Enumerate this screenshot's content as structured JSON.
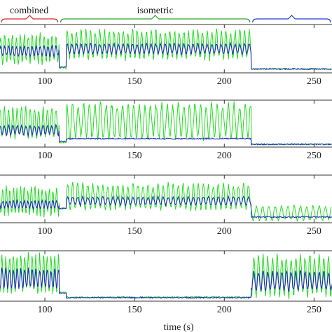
{
  "chart_data": [
    {
      "type": "line",
      "panel": 1,
      "xlabel": "",
      "ylabel": "",
      "xlim": [
        75,
        260
      ],
      "xticks": [
        100,
        150,
        200,
        250
      ],
      "xtick_labels": [
        "100",
        "150",
        "200",
        "250"
      ],
      "phases": [
        {
          "label": "combined",
          "start": 75,
          "end": 108,
          "color": "#d62728"
        },
        {
          "label": "isometric",
          "start": 108,
          "end": 215,
          "color": "#2ca02c"
        },
        {
          "label": "",
          "start": 215,
          "end": 260,
          "color": "#1f3bd6"
        }
      ],
      "series": [
        {
          "color": "#22dd22",
          "segments": [
            {
              "start": 75,
              "end": 108,
              "kind": "osc",
              "base": 0.5,
              "amp": 0.28,
              "period": 2.2
            },
            {
              "start": 108,
              "end": 112,
              "kind": "flat",
              "base": 0.1
            },
            {
              "start": 112,
              "end": 215,
              "kind": "osc",
              "base": 0.58,
              "amp": 0.28,
              "period": 2.6
            },
            {
              "start": 215,
              "end": 260,
              "kind": "flat",
              "base": 0.08
            }
          ]
        },
        {
          "color": "#1f2fb8",
          "segments": [
            {
              "start": 75,
              "end": 108,
              "kind": "osc",
              "base": 0.45,
              "amp": 0.1,
              "period": 2.2
            },
            {
              "start": 108,
              "end": 112,
              "kind": "flat",
              "base": 0.12
            },
            {
              "start": 112,
              "end": 215,
              "kind": "osc",
              "base": 0.5,
              "amp": 0.1,
              "period": 2.6
            },
            {
              "start": 215,
              "end": 260,
              "kind": "flat",
              "base": 0.08
            }
          ]
        }
      ]
    },
    {
      "type": "line",
      "panel": 2,
      "xlabel": "",
      "ylabel": "",
      "xlim": [
        75,
        260
      ],
      "xticks": [
        100,
        150,
        200,
        250
      ],
      "xtick_labels": [
        "100",
        "150",
        "200",
        "250"
      ],
      "series": [
        {
          "color": "#22dd22",
          "segments": [
            {
              "start": 75,
              "end": 108,
              "kind": "osc",
              "base": 0.52,
              "amp": 0.3,
              "period": 2.4
            },
            {
              "start": 108,
              "end": 112,
              "kind": "flat",
              "base": 0.1
            },
            {
              "start": 112,
              "end": 215,
              "kind": "osc",
              "base": 0.55,
              "amp": 0.35,
              "period": 3.1
            },
            {
              "start": 215,
              "end": 260,
              "kind": "flat",
              "base": 0.06
            }
          ]
        },
        {
          "color": "#1f2fb8",
          "segments": [
            {
              "start": 75,
              "end": 108,
              "kind": "osc",
              "base": 0.36,
              "amp": 0.1,
              "period": 2.4
            },
            {
              "start": 108,
              "end": 112,
              "kind": "flat",
              "base": 0.12
            },
            {
              "start": 112,
              "end": 215,
              "kind": "flat",
              "base": 0.18
            },
            {
              "start": 215,
              "end": 260,
              "kind": "flat",
              "base": 0.06
            }
          ]
        }
      ]
    },
    {
      "type": "line",
      "panel": 3,
      "xlabel": "",
      "ylabel": "",
      "xlim": [
        75,
        260
      ],
      "xticks": [
        100,
        150,
        200,
        250
      ],
      "xtick_labels": [
        "100",
        "150",
        "200",
        "250"
      ],
      "series": [
        {
          "color": "#22dd22",
          "segments": [
            {
              "start": 75,
              "end": 108,
              "kind": "osc",
              "base": 0.45,
              "amp": 0.28,
              "period": 2.0
            },
            {
              "start": 108,
              "end": 112,
              "kind": "flat",
              "base": 0.3
            },
            {
              "start": 112,
              "end": 215,
              "kind": "osc",
              "base": 0.55,
              "amp": 0.25,
              "period": 2.8
            },
            {
              "start": 215,
              "end": 260,
              "kind": "osc",
              "base": 0.2,
              "amp": 0.14,
              "period": 3.5
            }
          ]
        },
        {
          "color": "#1f2fb8",
          "segments": [
            {
              "start": 75,
              "end": 108,
              "kind": "osc",
              "base": 0.38,
              "amp": 0.08,
              "period": 2.0
            },
            {
              "start": 108,
              "end": 112,
              "kind": "flat",
              "base": 0.3
            },
            {
              "start": 112,
              "end": 215,
              "kind": "osc",
              "base": 0.46,
              "amp": 0.08,
              "period": 2.8
            },
            {
              "start": 215,
              "end": 260,
              "kind": "flat",
              "base": 0.12
            }
          ]
        }
      ]
    },
    {
      "type": "line",
      "panel": 4,
      "xlabel": "time (s)",
      "ylabel": "",
      "xlim": [
        75,
        260
      ],
      "xticks": [
        100,
        150,
        200,
        250
      ],
      "xtick_labels": [
        "100",
        "150",
        "200",
        "250"
      ],
      "series": [
        {
          "color": "#22dd22",
          "segments": [
            {
              "start": 75,
              "end": 108,
              "kind": "osc",
              "base": 0.55,
              "amp": 0.35,
              "period": 2.1
            },
            {
              "start": 108,
              "end": 112,
              "kind": "flat",
              "base": 0.18
            },
            {
              "start": 112,
              "end": 215,
              "kind": "flat",
              "base": 0.08
            },
            {
              "start": 215,
              "end": 260,
              "kind": "osc",
              "base": 0.5,
              "amp": 0.38,
              "period": 2.6
            }
          ]
        },
        {
          "color": "#1f2fb8",
          "segments": [
            {
              "start": 75,
              "end": 108,
              "kind": "osc",
              "base": 0.45,
              "amp": 0.18,
              "period": 2.1
            },
            {
              "start": 108,
              "end": 112,
              "kind": "flat",
              "base": 0.16
            },
            {
              "start": 112,
              "end": 215,
              "kind": "flat",
              "base": 0.07
            },
            {
              "start": 215,
              "end": 260,
              "kind": "osc",
              "base": 0.4,
              "amp": 0.18,
              "period": 2.6
            }
          ]
        }
      ]
    }
  ]
}
